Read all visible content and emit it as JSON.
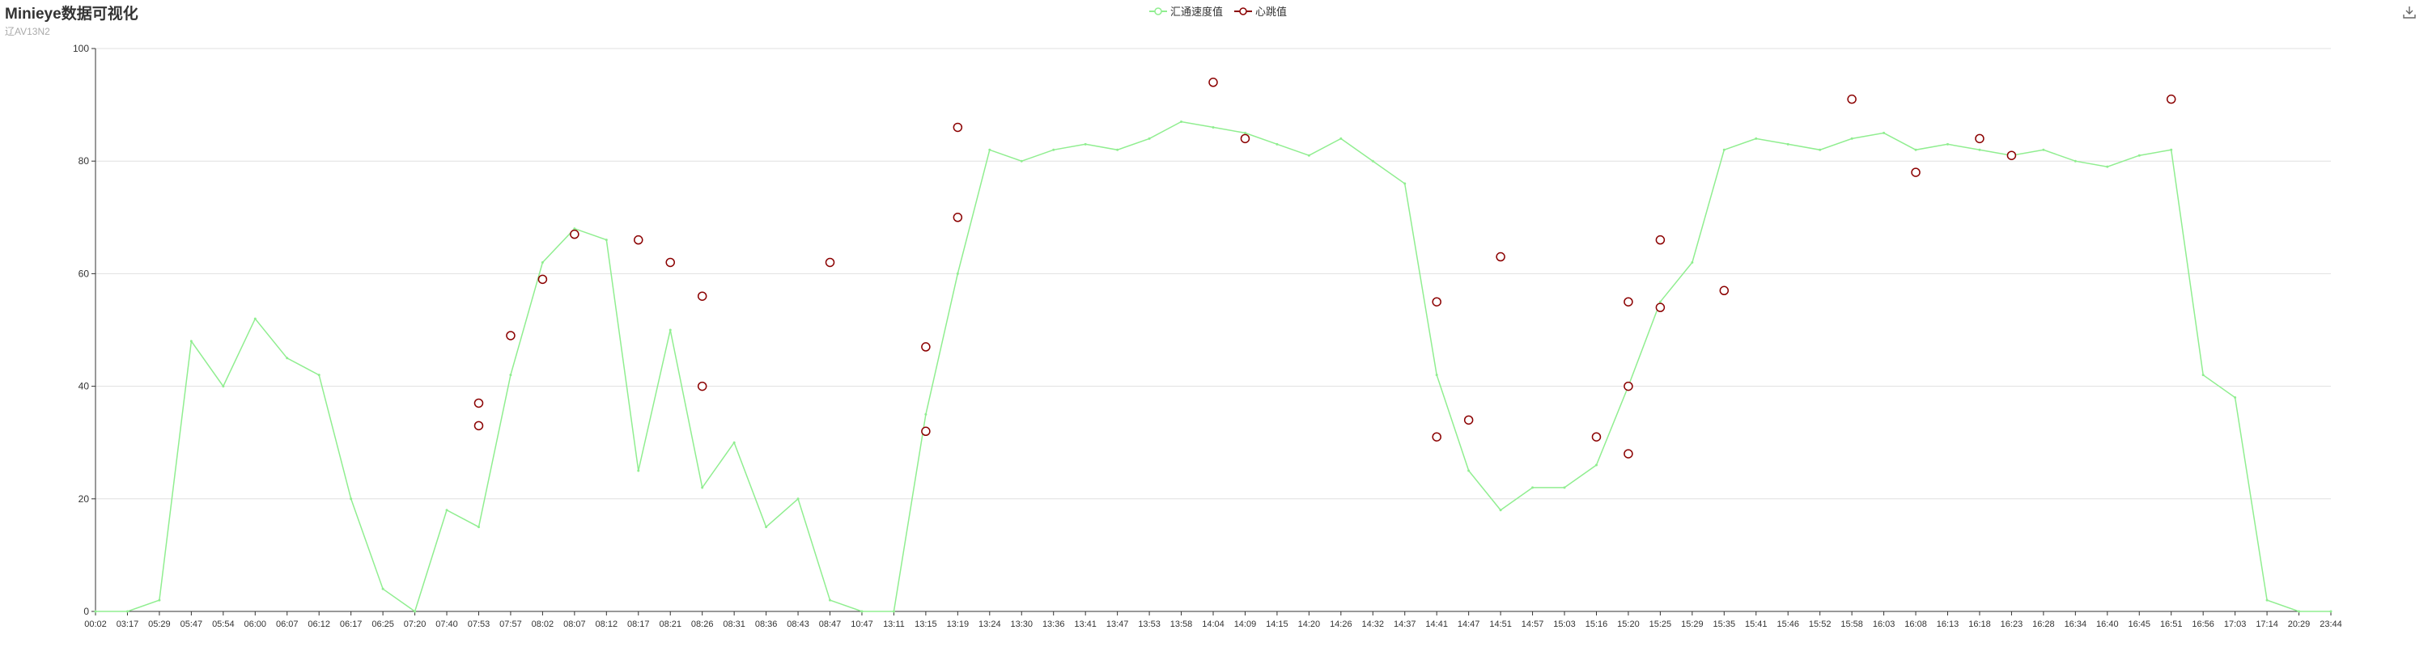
{
  "title": "Minieye数据可视化",
  "subtitle": "辽AV13N2",
  "legend": [
    {
      "name": "汇通速度值",
      "color": "#90ee90"
    },
    {
      "name": "心跳值",
      "color": "#8b0000"
    }
  ],
  "toolbar": {
    "download_icon": "download-icon"
  },
  "chart_data": {
    "type": "line",
    "title": "Minieye数据可视化",
    "subtitle": "辽AV13N2",
    "ylim": [
      0,
      100
    ],
    "yticks": [
      0,
      20,
      40,
      60,
      80,
      100
    ],
    "grid": true,
    "legend_position": "top-center",
    "x_categories": [
      "00:02",
      "03:17",
      "05:29",
      "05:47",
      "05:54",
      "06:00",
      "06:07",
      "06:12",
      "06:17",
      "06:25",
      "07:20",
      "07:40",
      "07:53",
      "07:57",
      "08:02",
      "08:07",
      "08:12",
      "08:17",
      "08:21",
      "08:26",
      "08:31",
      "08:36",
      "08:43",
      "08:47",
      "10:47",
      "13:11",
      "13:15",
      "13:19",
      "13:24",
      "13:30",
      "13:36",
      "13:41",
      "13:47",
      "13:53",
      "13:58",
      "14:04",
      "14:09",
      "14:15",
      "14:20",
      "14:26",
      "14:32",
      "14:37",
      "14:41",
      "14:47",
      "14:51",
      "14:57",
      "15:03",
      "15:16",
      "15:20",
      "15:25",
      "15:29",
      "15:35",
      "15:41",
      "15:46",
      "15:52",
      "15:58",
      "16:03",
      "16:08",
      "16:13",
      "16:18",
      "16:23",
      "16:28",
      "16:34",
      "16:40",
      "16:45",
      "16:51",
      "16:56",
      "17:03",
      "17:14",
      "20:29",
      "23:44"
    ],
    "series": [
      {
        "name": "汇通速度值",
        "color": "#90ee90",
        "values": [
          0,
          0,
          2,
          48,
          40,
          52,
          45,
          42,
          20,
          4,
          0,
          18,
          15,
          42,
          62,
          68,
          66,
          25,
          50,
          22,
          30,
          15,
          20,
          2,
          0,
          0,
          35,
          60,
          82,
          80,
          82,
          83,
          82,
          84,
          87,
          86,
          85,
          83,
          81,
          84,
          80,
          76,
          42,
          25,
          18,
          22,
          22,
          26,
          40,
          55,
          62,
          82,
          84,
          83,
          82,
          84,
          85,
          82,
          83,
          82,
          81,
          82,
          80,
          79,
          81,
          82,
          42,
          38,
          2,
          0,
          0
        ]
      },
      {
        "name": "心跳值",
        "color": "#8b0000",
        "points": [
          {
            "x": "07:53",
            "y": 37
          },
          {
            "x": "07:53",
            "y": 33
          },
          {
            "x": "07:57",
            "y": 49
          },
          {
            "x": "08:02",
            "y": 59
          },
          {
            "x": "08:07",
            "y": 67
          },
          {
            "x": "08:17",
            "y": 66
          },
          {
            "x": "08:21",
            "y": 62
          },
          {
            "x": "08:26",
            "y": 56
          },
          {
            "x": "08:26",
            "y": 40
          },
          {
            "x": "08:47",
            "y": 62
          },
          {
            "x": "13:15",
            "y": 32
          },
          {
            "x": "13:15",
            "y": 47
          },
          {
            "x": "13:19",
            "y": 70
          },
          {
            "x": "13:19",
            "y": 86
          },
          {
            "x": "14:04",
            "y": 94
          },
          {
            "x": "14:09",
            "y": 84
          },
          {
            "x": "14:41",
            "y": 31
          },
          {
            "x": "14:41",
            "y": 55
          },
          {
            "x": "14:47",
            "y": 34
          },
          {
            "x": "14:51",
            "y": 63
          },
          {
            "x": "15:16",
            "y": 31
          },
          {
            "x": "15:20",
            "y": 28
          },
          {
            "x": "15:20",
            "y": 40
          },
          {
            "x": "15:20",
            "y": 55
          },
          {
            "x": "15:25",
            "y": 66
          },
          {
            "x": "15:25",
            "y": 54
          },
          {
            "x": "15:35",
            "y": 57
          },
          {
            "x": "15:58",
            "y": 91
          },
          {
            "x": "16:08",
            "y": 78
          },
          {
            "x": "16:18",
            "y": 84
          },
          {
            "x": "16:23",
            "y": 81
          },
          {
            "x": "16:51",
            "y": 91
          }
        ]
      }
    ]
  }
}
